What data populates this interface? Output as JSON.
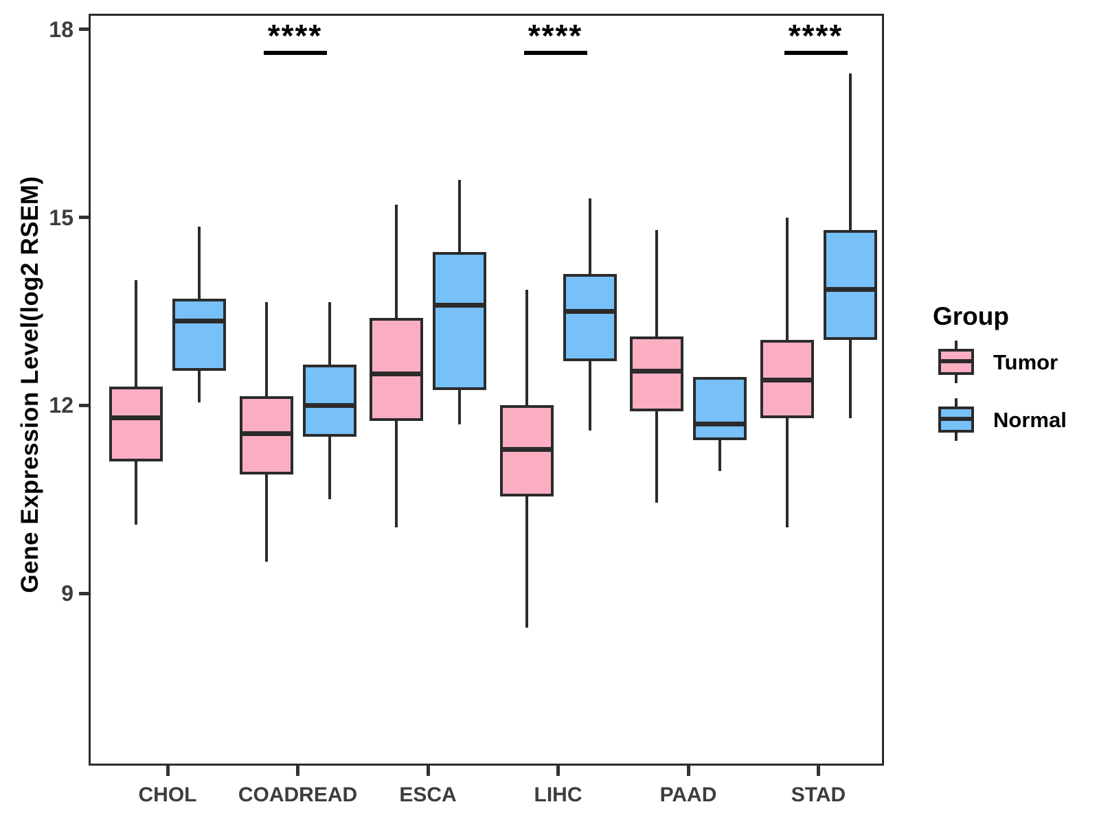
{
  "chart_data": {
    "type": "boxplot",
    "title": "",
    "xlabel": "",
    "ylabel": "Gene Expression Level(log2 RSEM)",
    "categories": [
      "CHOL",
      "COADREAD",
      "ESCA",
      "LIHC",
      "PAAD",
      "STAD"
    ],
    "yticks": [
      18,
      15,
      12,
      9
    ],
    "ylim": [
      6.25,
      18.25
    ],
    "grid": "off",
    "legend": {
      "title": "Group",
      "position": "right",
      "entries": [
        {
          "label": "Tumor",
          "color": "#FBAEC2"
        },
        {
          "label": "Normal",
          "color": "#77C0F8"
        }
      ]
    },
    "colors": {
      "tumor_fill": "#FBAEC2",
      "normal_fill": "#77C0F8",
      "box_border": "#2b2b2b",
      "axis_text": "#3d3d3d",
      "significance": "#000000"
    },
    "series": [
      {
        "name": "Tumor",
        "color": "#FBAEC2",
        "boxes": [
          {
            "category": "CHOL",
            "whisker_low": 10.1,
            "q1": 11.1,
            "median": 11.8,
            "q3": 12.3,
            "whisker_high": 14.0
          },
          {
            "category": "COADREAD",
            "whisker_low": 9.5,
            "q1": 10.9,
            "median": 11.55,
            "q3": 12.15,
            "whisker_high": 13.65
          },
          {
            "category": "ESCA",
            "whisker_low": 10.05,
            "q1": 11.75,
            "median": 12.5,
            "q3": 13.4,
            "whisker_high": 15.2
          },
          {
            "category": "LIHC",
            "whisker_low": 8.45,
            "q1": 10.55,
            "median": 11.3,
            "q3": 12.0,
            "whisker_high": 13.85
          },
          {
            "category": "PAAD",
            "whisker_low": 10.45,
            "q1": 11.9,
            "median": 12.55,
            "q3": 13.1,
            "whisker_high": 14.8
          },
          {
            "category": "STAD",
            "whisker_low": 10.05,
            "q1": 11.8,
            "median": 12.4,
            "q3": 13.05,
            "whisker_high": 15.0
          }
        ]
      },
      {
        "name": "Normal",
        "color": "#77C0F8",
        "boxes": [
          {
            "category": "CHOL",
            "whisker_low": 12.05,
            "q1": 12.55,
            "median": 13.35,
            "q3": 13.7,
            "whisker_high": 14.85
          },
          {
            "category": "COADREAD",
            "whisker_low": 10.5,
            "q1": 11.5,
            "median": 12.0,
            "q3": 12.65,
            "whisker_high": 13.65
          },
          {
            "category": "ESCA",
            "whisker_low": 11.7,
            "q1": 12.25,
            "median": 13.6,
            "q3": 14.45,
            "whisker_high": 15.6
          },
          {
            "category": "LIHC",
            "whisker_low": 11.6,
            "q1": 12.7,
            "median": 13.5,
            "q3": 14.1,
            "whisker_high": 15.3
          },
          {
            "category": "PAAD",
            "whisker_low": 10.95,
            "q1": 11.45,
            "median": 11.7,
            "q3": 12.45,
            "whisker_high": 12.45
          },
          {
            "category": "STAD",
            "whisker_low": 11.8,
            "q1": 13.05,
            "median": 13.85,
            "q3": 14.8,
            "whisker_high": 17.3
          }
        ]
      }
    ],
    "significance": [
      {
        "category": "COADREAD",
        "label": "****"
      },
      {
        "category": "LIHC",
        "label": "****"
      },
      {
        "category": "STAD",
        "label": "****"
      }
    ]
  }
}
